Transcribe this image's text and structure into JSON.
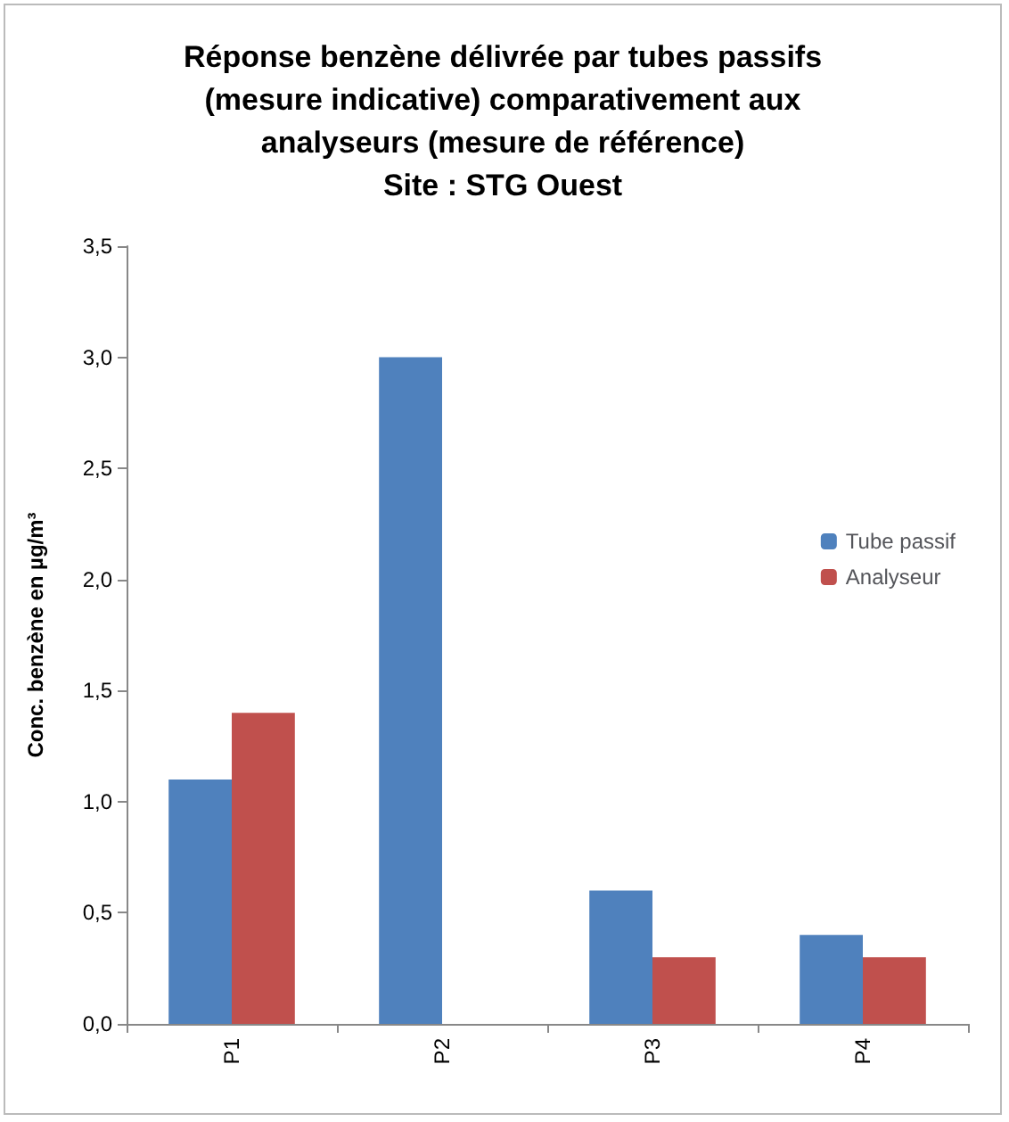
{
  "chart_data": {
    "type": "bar",
    "title": "Réponse benzène délivrée par tubes passifs\n(mesure indicative) comparativement aux\nanalyseurs (mesure de référence)\nSite : STG Ouest",
    "ylabel": "Conc. benzène en µg/m³",
    "categories": [
      "P1",
      "P2",
      "P3",
      "P4"
    ],
    "series": [
      {
        "name": "Tube passif",
        "color": "#4f81bd",
        "values": [
          1.1,
          3.0,
          0.6,
          0.4
        ]
      },
      {
        "name": "Analyseur",
        "color": "#c0504d",
        "values": [
          1.4,
          null,
          0.3,
          0.3
        ]
      }
    ],
    "ylim": [
      0,
      3.5
    ],
    "yticks": [
      {
        "value": 0,
        "label": "0,0"
      },
      {
        "value": 0.5,
        "label": "0,5"
      },
      {
        "value": 1,
        "label": "1,0"
      },
      {
        "value": 1.5,
        "label": "1,5"
      },
      {
        "value": 2,
        "label": "2,0"
      },
      {
        "value": 2.5,
        "label": "2,5"
      },
      {
        "value": 3,
        "label": "3,0"
      },
      {
        "value": 3.5,
        "label": "3,5"
      }
    ],
    "grid": false,
    "legend": "right"
  }
}
